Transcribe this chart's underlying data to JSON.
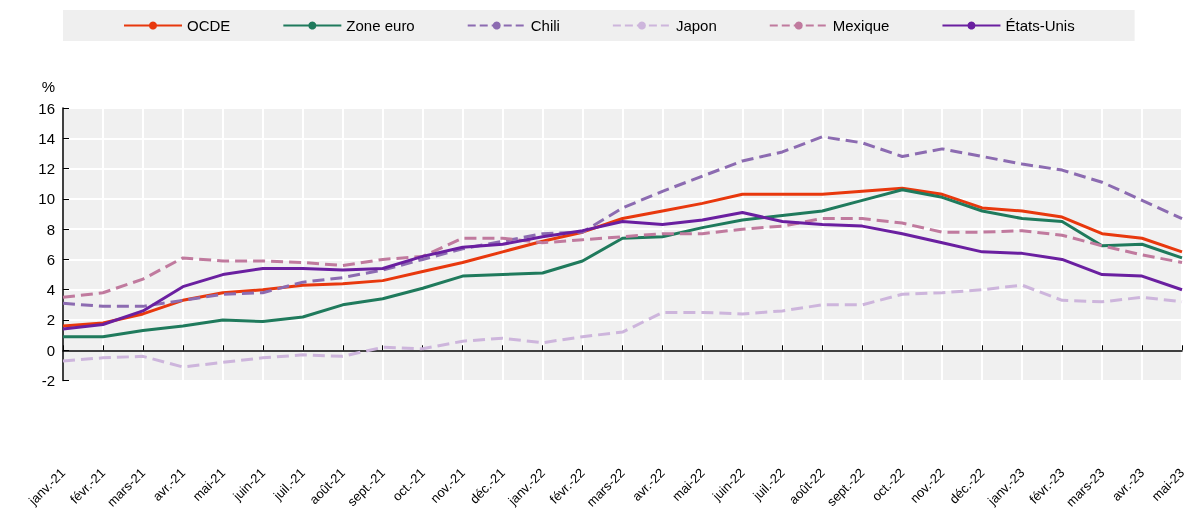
{
  "chart_data": {
    "type": "line",
    "ylabel": "%",
    "categories": [
      "janv.-21",
      "févr.-21",
      "mars-21",
      "avr.-21",
      "mai-21",
      "juin-21",
      "juil.-21",
      "août-21",
      "sept.-21",
      "oct.-21",
      "nov.-21",
      "déc.-21",
      "janv.-22",
      "févr.-22",
      "mars-22",
      "avr.-22",
      "mai-22",
      "juin-22",
      "juil.-22",
      "août-22",
      "sept.-22",
      "oct.-22",
      "nov.-22",
      "déc.-22",
      "janv.-23",
      "févr.-23",
      "mars-23",
      "avr.-23",
      "mai-23"
    ],
    "series": [
      {
        "name": "OCDE",
        "color": "#e8380d",
        "line_style": "solid",
        "values": [
          1.6,
          1.8,
          2.4,
          3.3,
          3.8,
          4.0,
          4.3,
          4.4,
          4.6,
          5.2,
          5.8,
          6.5,
          7.2,
          7.8,
          8.7,
          9.2,
          9.7,
          10.3,
          10.3,
          10.3,
          10.5,
          10.7,
          10.3,
          9.4,
          9.2,
          8.8,
          7.7,
          7.4,
          6.5
        ]
      },
      {
        "name": "Zone euro",
        "color": "#1f7a5c",
        "line_style": "solid",
        "values": [
          0.9,
          0.9,
          1.3,
          1.6,
          2.0,
          1.9,
          2.2,
          3.0,
          3.4,
          4.1,
          4.9,
          5.0,
          5.1,
          5.9,
          7.4,
          7.5,
          8.1,
          8.6,
          8.9,
          9.2,
          9.9,
          10.6,
          10.1,
          9.2,
          8.7,
          8.5,
          6.9,
          7.0,
          6.1
        ]
      },
      {
        "name": "Chili",
        "color": "#8c6bb1",
        "line_style": "dashed",
        "values": [
          3.1,
          2.9,
          2.9,
          3.3,
          3.7,
          3.8,
          4.5,
          4.8,
          5.3,
          6.0,
          6.7,
          7.2,
          7.7,
          7.8,
          9.4,
          10.5,
          11.5,
          12.5,
          13.1,
          14.1,
          13.7,
          12.8,
          13.3,
          12.8,
          12.3,
          11.9,
          11.1,
          9.9,
          8.7
        ]
      },
      {
        "name": "Japon",
        "color": "#cdb5dc",
        "line_style": "dashed",
        "values": [
          -0.7,
          -0.5,
          -0.4,
          -1.1,
          -0.8,
          -0.5,
          -0.3,
          -0.4,
          0.2,
          0.1,
          0.6,
          0.8,
          0.5,
          0.9,
          1.2,
          2.5,
          2.5,
          2.4,
          2.6,
          3.0,
          3.0,
          3.7,
          3.8,
          4.0,
          4.3,
          3.3,
          3.2,
          3.5,
          3.2
        ]
      },
      {
        "name": "Mexique",
        "color": "#c07a9e",
        "line_style": "dashed",
        "values": [
          3.5,
          3.8,
          4.7,
          6.1,
          5.9,
          5.9,
          5.8,
          5.6,
          6.0,
          6.2,
          7.4,
          7.4,
          7.1,
          7.3,
          7.5,
          7.7,
          7.7,
          8.0,
          8.2,
          8.7,
          8.7,
          8.4,
          7.8,
          7.8,
          7.9,
          7.6,
          6.9,
          6.3,
          5.8
        ]
      },
      {
        "name": "États-Unis",
        "color": "#6a1fa0",
        "line_style": "solid",
        "values": [
          1.4,
          1.7,
          2.6,
          4.2,
          5.0,
          5.4,
          5.4,
          5.3,
          5.4,
          6.2,
          6.8,
          7.0,
          7.5,
          7.9,
          8.5,
          8.3,
          8.6,
          9.1,
          8.5,
          8.3,
          8.2,
          7.7,
          7.1,
          6.5,
          6.4,
          6.0,
          5.0,
          4.9,
          4.0
        ]
      }
    ],
    "ylim": [
      -2,
      16
    ],
    "yticks": [
      -2,
      0,
      2,
      4,
      6,
      8,
      10,
      12,
      14,
      16
    ],
    "grid": true,
    "legend": "top",
    "marker": "none"
  }
}
